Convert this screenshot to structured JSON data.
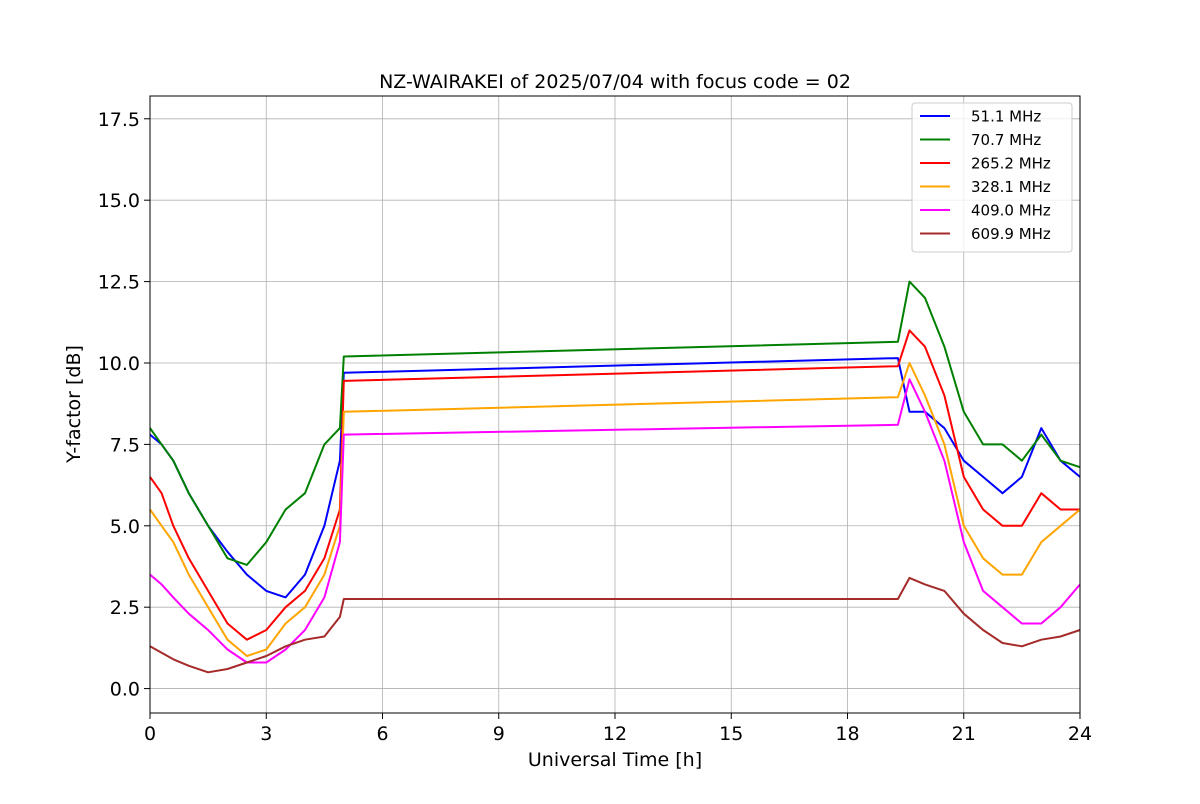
{
  "chart_data": {
    "type": "line",
    "title": "NZ-WAIRAKEI of 2025/07/04 with focus code = 02",
    "xlabel": "Universal Time [h]",
    "ylabel": "Y-factor [dB]",
    "xlim": [
      0,
      24
    ],
    "ylim": [
      -0.75,
      18.2
    ],
    "x_ticks": [
      0,
      3,
      6,
      9,
      12,
      15,
      18,
      21,
      24
    ],
    "y_ticks": [
      0.0,
      2.5,
      5.0,
      7.5,
      10.0,
      12.5,
      15.0,
      17.5
    ],
    "x_tick_labels": [
      "0",
      "3",
      "6",
      "9",
      "12",
      "15",
      "18",
      "21",
      "24"
    ],
    "y_tick_labels": [
      "0.0",
      "2.5",
      "5.0",
      "7.5",
      "10.0",
      "12.5",
      "15.0",
      "17.5"
    ],
    "grid": true,
    "legend_position": "upper right",
    "series": [
      {
        "name": " 51.1 MHz",
        "color": "#0000ff",
        "x": [
          0,
          0.3,
          0.6,
          1.0,
          1.5,
          2.0,
          2.5,
          3.0,
          3.5,
          4.0,
          4.5,
          4.9,
          5.0,
          19.3,
          19.6,
          20.0,
          20.5,
          21.0,
          21.5,
          22.0,
          22.5,
          23.0,
          23.5,
          24.0
        ],
        "y": [
          7.8,
          7.5,
          7.0,
          6.0,
          5.0,
          4.2,
          3.5,
          3.0,
          2.8,
          3.5,
          5.0,
          7.0,
          9.7,
          10.15,
          8.5,
          8.5,
          8.0,
          7.0,
          6.5,
          6.0,
          6.5,
          8.0,
          7.0,
          6.5
        ]
      },
      {
        "name": " 70.7 MHz",
        "color": "#008000",
        "x": [
          0,
          0.3,
          0.6,
          1.0,
          1.5,
          2.0,
          2.5,
          3.0,
          3.5,
          4.0,
          4.5,
          4.9,
          5.0,
          19.3,
          19.6,
          20.0,
          20.5,
          21.0,
          21.5,
          22.0,
          22.5,
          23.0,
          23.5,
          24.0
        ],
        "y": [
          8.0,
          7.5,
          7.0,
          6.0,
          5.0,
          4.0,
          3.8,
          4.5,
          5.5,
          6.0,
          7.5,
          8.0,
          10.2,
          10.65,
          12.5,
          12.0,
          10.5,
          8.5,
          7.5,
          7.5,
          7.0,
          7.8,
          7.0,
          6.8
        ]
      },
      {
        "name": "265.2 MHz",
        "color": "#ff0000",
        "x": [
          0,
          0.3,
          0.6,
          1.0,
          1.5,
          2.0,
          2.5,
          3.0,
          3.5,
          4.0,
          4.5,
          4.9,
          5.0,
          19.3,
          19.6,
          20.0,
          20.5,
          21.0,
          21.5,
          22.0,
          22.5,
          23.0,
          23.5,
          24.0
        ],
        "y": [
          6.5,
          6.0,
          5.0,
          4.0,
          3.0,
          2.0,
          1.5,
          1.8,
          2.5,
          3.0,
          4.0,
          5.5,
          9.45,
          9.9,
          11.0,
          10.5,
          9.0,
          6.5,
          5.5,
          5.0,
          5.0,
          6.0,
          5.5,
          5.5
        ]
      },
      {
        "name": "328.1 MHz",
        "color": "#ffa500",
        "x": [
          0,
          0.3,
          0.6,
          1.0,
          1.5,
          2.0,
          2.5,
          3.0,
          3.5,
          4.0,
          4.5,
          4.9,
          5.0,
          19.3,
          19.6,
          20.0,
          20.5,
          21.0,
          21.5,
          22.0,
          22.5,
          23.0,
          23.5,
          24.0
        ],
        "y": [
          5.5,
          5.0,
          4.5,
          3.5,
          2.5,
          1.5,
          1.0,
          1.2,
          2.0,
          2.5,
          3.5,
          5.0,
          8.5,
          8.95,
          10.0,
          9.0,
          7.5,
          5.0,
          4.0,
          3.5,
          3.5,
          4.5,
          5.0,
          5.5
        ]
      },
      {
        "name": "409.0 MHz",
        "color": "#ff00ff",
        "x": [
          0,
          0.3,
          0.6,
          1.0,
          1.5,
          2.0,
          2.5,
          3.0,
          3.5,
          4.0,
          4.5,
          4.9,
          5.0,
          19.3,
          19.6,
          20.0,
          20.5,
          21.0,
          21.5,
          22.0,
          22.5,
          23.0,
          23.5,
          24.0
        ],
        "y": [
          3.5,
          3.2,
          2.8,
          2.3,
          1.8,
          1.2,
          0.8,
          0.8,
          1.2,
          1.8,
          2.8,
          4.5,
          7.8,
          8.1,
          9.5,
          8.5,
          7.0,
          4.5,
          3.0,
          2.5,
          2.0,
          2.0,
          2.5,
          3.2
        ]
      },
      {
        "name": "609.9 MHz",
        "color": "#a52a2a",
        "x": [
          0,
          0.3,
          0.6,
          1.0,
          1.5,
          2.0,
          2.5,
          3.0,
          3.5,
          4.0,
          4.5,
          4.9,
          5.0,
          19.3,
          19.6,
          20.0,
          20.5,
          21.0,
          21.5,
          22.0,
          22.5,
          23.0,
          23.5,
          24.0
        ],
        "y": [
          1.3,
          1.1,
          0.9,
          0.7,
          0.5,
          0.6,
          0.8,
          1.0,
          1.3,
          1.5,
          1.6,
          2.2,
          2.75,
          2.75,
          3.4,
          3.2,
          3.0,
          2.3,
          1.8,
          1.4,
          1.3,
          1.5,
          1.6,
          1.8
        ]
      }
    ]
  }
}
